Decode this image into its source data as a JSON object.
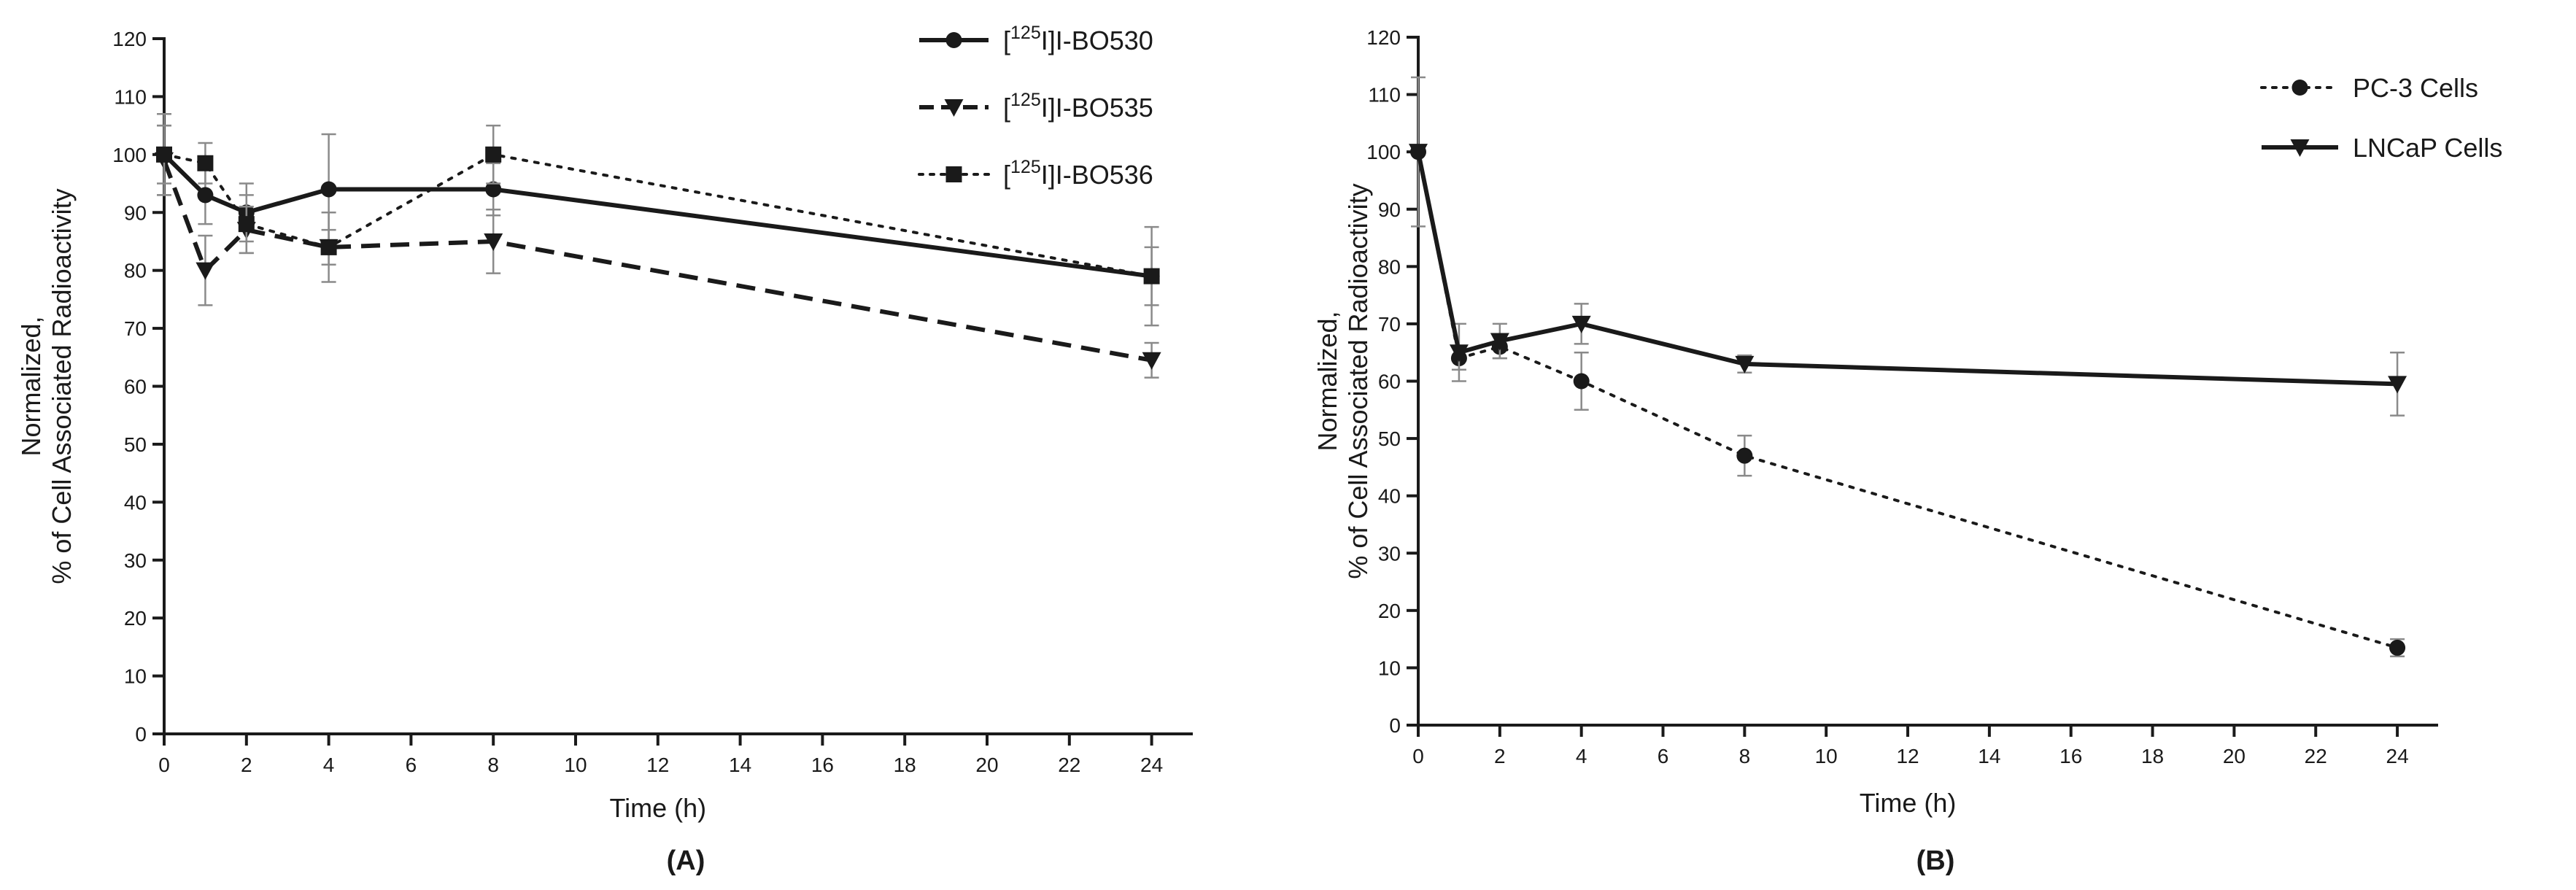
{
  "chart_data": [
    {
      "type": "line",
      "panel_label": "(A)",
      "xlabel": "Time (h)",
      "ylabel_line1": "Normalized,",
      "ylabel_line2": "% of Cell Associated Radioactivity",
      "xlim": [
        0,
        25
      ],
      "ylim": [
        0,
        120
      ],
      "xticks": [
        0,
        2,
        4,
        6,
        8,
        10,
        12,
        14,
        16,
        18,
        20,
        22,
        24
      ],
      "yticks": [
        0,
        10,
        20,
        30,
        40,
        50,
        60,
        70,
        80,
        90,
        100,
        110,
        120
      ],
      "legend_position": "top-right",
      "series": [
        {
          "name": "[125I]I-BO530",
          "name_prefix": "[",
          "name_sup": "125",
          "name_rest": "I]I-BO530",
          "line_style": "solid",
          "marker": "circle",
          "color": "#1a1a1a",
          "x": [
            0,
            1,
            2,
            4,
            8,
            24
          ],
          "y": [
            100,
            93,
            90,
            94,
            94,
            79
          ],
          "err": [
            5,
            5,
            5,
            9.5,
            4.5,
            8.5
          ]
        },
        {
          "name": "[125I]I-BO535",
          "name_prefix": "[",
          "name_sup": "125",
          "name_rest": "I]I-BO535",
          "line_style": "dashed",
          "marker": "triangle-down",
          "color": "#1a1a1a",
          "x": [
            0,
            1,
            2,
            4,
            8,
            24
          ],
          "y": [
            99,
            80,
            87,
            84,
            85,
            64.5
          ],
          "err": [
            6,
            6,
            4,
            6,
            5.5,
            3
          ]
        },
        {
          "name": "[125I]I-BO536",
          "name_prefix": "[",
          "name_sup": "125",
          "name_rest": "I]I-BO536",
          "line_style": "dotted",
          "marker": "square",
          "color": "#1a1a1a",
          "x": [
            0,
            1,
            2,
            4,
            8,
            24
          ],
          "y": [
            100,
            98.5,
            88,
            84,
            100,
            79
          ],
          "err": [
            7,
            3.5,
            5,
            3,
            5,
            5
          ]
        }
      ]
    },
    {
      "type": "line",
      "panel_label": "(B)",
      "xlabel": "Time (h)",
      "ylabel_line1": "Normalized,",
      "ylabel_line2": "% of Cell Associated Radioactivity",
      "xlim": [
        0,
        25
      ],
      "ylim": [
        0,
        120
      ],
      "xticks": [
        0,
        2,
        4,
        6,
        8,
        10,
        12,
        14,
        16,
        18,
        20,
        22,
        24
      ],
      "yticks": [
        0,
        10,
        20,
        30,
        40,
        50,
        60,
        70,
        80,
        90,
        100,
        110,
        120
      ],
      "legend_position": "top-right",
      "series": [
        {
          "name": "PC-3 Cells",
          "line_style": "dotted",
          "marker": "circle",
          "color": "#1a1a1a",
          "x": [
            0,
            1,
            2,
            4,
            8,
            24
          ],
          "y": [
            100,
            64,
            66,
            60,
            47,
            13.5
          ],
          "err": [
            0,
            2,
            2,
            5,
            3.5,
            1.5
          ]
        },
        {
          "name": "LNCaP Cells",
          "line_style": "solid",
          "marker": "triangle-down",
          "color": "#1a1a1a",
          "x": [
            0,
            1,
            2,
            4,
            8,
            24
          ],
          "y": [
            100,
            65,
            67,
            70,
            63,
            59.5
          ],
          "err": [
            13,
            5,
            3,
            3.5,
            1.5,
            5.5
          ]
        }
      ]
    }
  ]
}
